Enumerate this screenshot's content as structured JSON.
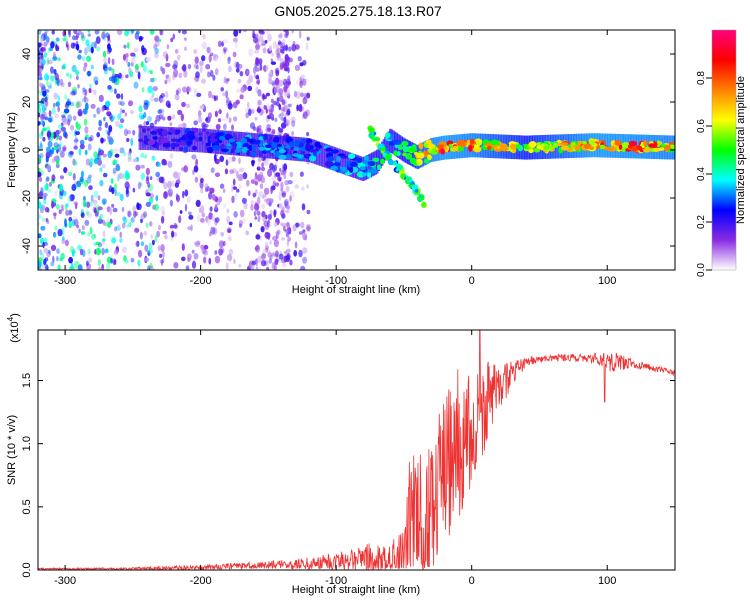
{
  "title": "GN05.2025.275.18.13.R07",
  "chart_data": [
    {
      "type": "heatmap",
      "xlabel": "Height of straight line (km)",
      "ylabel": "Frequency (Hz)",
      "xlim": [
        -320,
        150
      ],
      "ylim": [
        -50,
        50
      ],
      "x_ticks": [
        -300,
        -200,
        -100,
        0,
        100
      ],
      "y_ticks": [
        -40,
        -20,
        0,
        20,
        40
      ],
      "colorbar": {
        "label": "Normalized spectral amplitude",
        "range": [
          0.0,
          1.0
        ],
        "ticks": [
          0.0,
          0.2,
          0.4,
          0.6,
          0.8
        ],
        "colormap": [
          "#ffffff",
          "#8a2be2",
          "#0000ff",
          "#00ffff",
          "#00ff00",
          "#ffff00",
          "#ff8000",
          "#ff0000",
          "#ff0080"
        ]
      },
      "ridge": {
        "x": [
          -240,
          -200,
          -160,
          -120,
          -100,
          -80,
          -70,
          -60,
          -50,
          -40,
          -30,
          -20,
          0,
          40,
          90,
          150
        ],
        "freq_hz": [
          5,
          4,
          2,
          0,
          -4,
          -8,
          -5,
          4,
          0,
          -3,
          0,
          1,
          2,
          1,
          2,
          1
        ],
        "amplitude": [
          0.2,
          0.25,
          0.3,
          0.3,
          0.3,
          0.35,
          0.45,
          0.4,
          0.45,
          0.6,
          0.75,
          0.8,
          0.75,
          0.55,
          0.8,
          0.75
        ]
      },
      "branch": {
        "x": [
          -75,
          -65,
          -55,
          -45,
          -40,
          -35
        ],
        "freq_hz": [
          8,
          0,
          -7,
          -14,
          -18,
          -22
        ]
      }
    },
    {
      "type": "line",
      "xlabel": "Height of straight line (km)",
      "ylabel": "SNR (10 * v/v)",
      "y_multiplier": "(x10",
      "y_multiplier_exp": "4",
      "xlim": [
        -320,
        150
      ],
      "ylim": [
        0,
        1.9
      ],
      "x_ticks": [
        -300,
        -200,
        -100,
        0,
        100
      ],
      "y_ticks": [
        0.0,
        0.5,
        1.0,
        1.5
      ],
      "y_tick_labels": [
        "0.0",
        "0.5",
        "1.0",
        "1.5"
      ],
      "color": "#ee3333",
      "envelope": {
        "x": [
          -320,
          -260,
          -200,
          -150,
          -120,
          -100,
          -80,
          -60,
          -50,
          -45,
          -40,
          -35,
          -30,
          -20,
          -10,
          0,
          10,
          20,
          30,
          40,
          60,
          80,
          95,
          100,
          120,
          150
        ],
        "base": [
          0.01,
          0.01,
          0.02,
          0.04,
          0.05,
          0.07,
          0.1,
          0.05,
          0.15,
          0.3,
          0.45,
          0.3,
          0.4,
          0.8,
          1.0,
          1.1,
          1.3,
          1.45,
          1.55,
          1.65,
          1.68,
          1.68,
          1.67,
          1.66,
          1.63,
          1.56
        ],
        "spread": [
          0.005,
          0.008,
          0.02,
          0.03,
          0.05,
          0.07,
          0.12,
          0.15,
          0.25,
          0.7,
          0.8,
          0.6,
          0.6,
          0.6,
          0.6,
          0.45,
          0.35,
          0.2,
          0.1,
          0.04,
          0.03,
          0.03,
          0.05,
          0.1,
          0.03,
          0.02
        ]
      },
      "peak": {
        "x": 6,
        "y": 1.9
      },
      "dip": {
        "x": 98,
        "y": 1.33
      }
    }
  ]
}
